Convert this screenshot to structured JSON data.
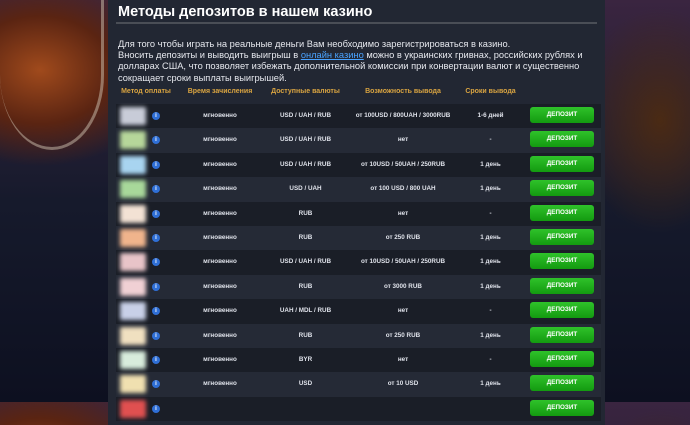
{
  "title": "Методы депозитов в нашем казино",
  "intro": {
    "line1": "Для того чтобы играть на реальные деньги Вам необходимо зарегистрироваться в казино.",
    "pre_link": "Вносить депозиты и выводить выигрыш в ",
    "link": "онлайн казино",
    "post_link": " можно в украинских гривнах, российских рублях и долларах США, что позволяет избежать дополнительной комиссии при конвертации валют и существенно сокращает сроки выплаты выигрышей."
  },
  "columns": [
    "Метод оплаты",
    "Время зачисления",
    "Доступные валюты",
    "Возможность вывода",
    "Сроки вывода"
  ],
  "button_label": "ДЕПОЗИТ",
  "rows": [
    {
      "time": "мгновенно",
      "currencies": "USD / UAH / RUB",
      "withdraw": "от 100USD / 800UAH / 3000RUB",
      "terms": "1-6 дней",
      "logo_color": "#c8ccd8"
    },
    {
      "time": "мгновенно",
      "currencies": "USD / UAH / RUB",
      "withdraw": "нет",
      "terms": "-",
      "logo_color": "#b6d69a"
    },
    {
      "time": "мгновенно",
      "currencies": "USD / UAH / RUB",
      "withdraw": "от 10USD / 50UAH / 250RUB",
      "terms": "1 день",
      "logo_color": "#a8d4f0"
    },
    {
      "time": "мгновенно",
      "currencies": "USD / UAH",
      "withdraw": "от 100 USD / 800 UAH",
      "terms": "1 день",
      "logo_color": "#a8d89a"
    },
    {
      "time": "мгновенно",
      "currencies": "RUB",
      "withdraw": "нет",
      "terms": "-",
      "logo_color": "#f3e2d4"
    },
    {
      "time": "мгновенно",
      "currencies": "RUB",
      "withdraw": "от 250 RUB",
      "terms": "1 день",
      "logo_color": "#f0b48c"
    },
    {
      "time": "мгновенно",
      "currencies": "USD / UAH / RUB",
      "withdraw": "от 10USD / 50UAH / 250RUB",
      "terms": "1 день",
      "logo_color": "#e8c4c8"
    },
    {
      "time": "мгновенно",
      "currencies": "RUB",
      "withdraw": "от 3000 RUB",
      "terms": "1 день",
      "logo_color": "#f0d0d4"
    },
    {
      "time": "мгновенно",
      "currencies": "UAH / MDL / RUB",
      "withdraw": "нет",
      "terms": "-",
      "logo_color": "#c8d0e8"
    },
    {
      "time": "мгновенно",
      "currencies": "RUB",
      "withdraw": "от 250 RUB",
      "terms": "1 день",
      "logo_color": "#f0e0c0"
    },
    {
      "time": "мгновенно",
      "currencies": "BYR",
      "withdraw": "нет",
      "terms": "-",
      "logo_color": "#d8ecdc"
    },
    {
      "time": "мгновенно",
      "currencies": "USD",
      "withdraw": "от 10 USD",
      "terms": "1 день",
      "logo_color": "#f0e0b0"
    },
    {
      "time": "",
      "currencies": "",
      "withdraw": "",
      "terms": "",
      "logo_color": "#e05050"
    }
  ]
}
